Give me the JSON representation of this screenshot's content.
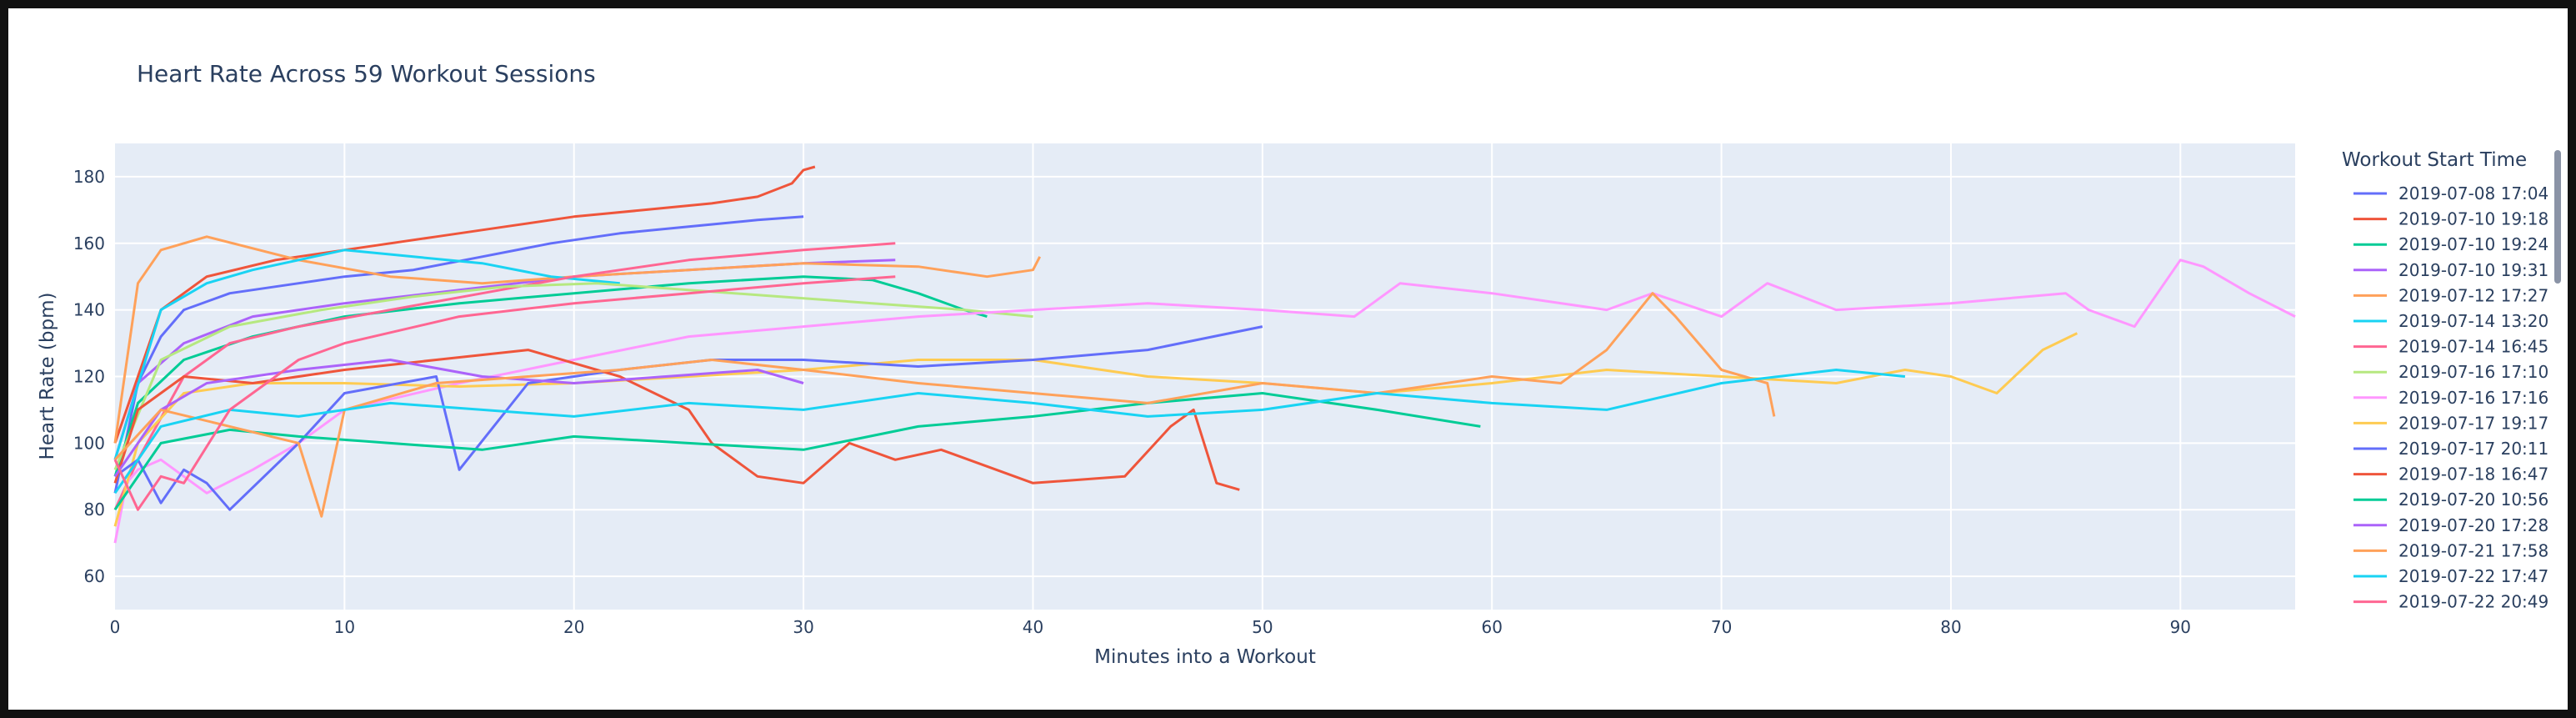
{
  "chart_data": {
    "type": "line",
    "title": "Heart Rate Across 59 Workout Sessions",
    "xlabel": "Minutes into a Workout",
    "ylabel": "Heart Rate (bpm)",
    "xlim": [
      0,
      95
    ],
    "ylim": [
      50,
      190
    ],
    "xticks": [
      0,
      10,
      20,
      30,
      40,
      50,
      60,
      70,
      80,
      90
    ],
    "yticks": [
      60,
      80,
      100,
      120,
      140,
      160,
      180
    ],
    "grid": true,
    "legend": {
      "title": "Workout Start Time",
      "placement": "right",
      "scrollable": true
    },
    "series": [
      {
        "name": "2019-07-08 17:04",
        "color": "#636efa",
        "x": [
          0,
          1,
          2,
          3,
          5,
          8,
          10,
          13,
          16,
          19,
          22,
          25,
          28,
          30
        ],
        "y": [
          85,
          118,
          132,
          140,
          145,
          148,
          150,
          152,
          156,
          160,
          163,
          165,
          167,
          168
        ]
      },
      {
        "name": "2019-07-10 19:18",
        "color": "#EF553B",
        "x": [
          0,
          2,
          4,
          7,
          10,
          14,
          17,
          20,
          23,
          26,
          28,
          29.5,
          30,
          30.5
        ],
        "y": [
          100,
          140,
          150,
          155,
          158,
          162,
          165,
          168,
          170,
          172,
          174,
          178,
          182,
          183
        ]
      },
      {
        "name": "2019-07-10 19:24",
        "color": "#00cc96",
        "x": [
          0,
          1,
          3,
          6,
          10,
          15,
          20,
          25,
          30,
          33,
          35,
          37,
          38
        ],
        "y": [
          90,
          112,
          125,
          132,
          138,
          142,
          145,
          148,
          150,
          149,
          145,
          140,
          138
        ]
      },
      {
        "name": "2019-07-10 19:31",
        "color": "#ab63fa",
        "x": [
          0,
          1,
          3,
          6,
          10,
          15,
          20,
          25,
          30,
          34
        ],
        "y": [
          95,
          118,
          130,
          138,
          142,
          146,
          150,
          152,
          154,
          155
        ]
      },
      {
        "name": "2019-07-12 17:27",
        "color": "#FFA15A",
        "x": [
          0,
          1,
          2,
          4,
          8,
          12,
          16,
          20,
          25,
          30,
          35,
          38,
          40,
          40.3
        ],
        "y": [
          100,
          148,
          158,
          162,
          155,
          150,
          148,
          150,
          152,
          154,
          153,
          150,
          152,
          156
        ]
      },
      {
        "name": "2019-07-14 13:20",
        "color": "#19d3f3",
        "x": [
          0,
          2,
          4,
          6,
          8,
          10,
          13,
          16,
          19,
          22
        ],
        "y": [
          95,
          140,
          148,
          152,
          155,
          158,
          156,
          154,
          150,
          148
        ]
      },
      {
        "name": "2019-07-14 16:45",
        "color": "#FF6692",
        "x": [
          0,
          1,
          3,
          5,
          8,
          12,
          16,
          20,
          25,
          30,
          34
        ],
        "y": [
          80,
          95,
          120,
          130,
          135,
          140,
          145,
          150,
          155,
          158,
          160
        ]
      },
      {
        "name": "2019-07-16 17:10",
        "color": "#B6E880",
        "x": [
          0,
          2,
          5,
          9,
          13,
          17,
          21,
          25,
          29,
          33,
          37,
          40
        ],
        "y": [
          92,
          125,
          135,
          140,
          144,
          147,
          148,
          146,
          144,
          142,
          140,
          138
        ]
      },
      {
        "name": "2019-07-16 17:16",
        "color": "#FF97FF",
        "x": [
          0,
          0.5,
          1,
          2,
          4,
          6,
          8,
          10,
          15,
          20,
          25,
          30,
          35,
          40,
          45,
          50,
          54,
          56,
          60,
          65,
          67,
          70,
          72,
          75,
          80,
          85,
          86,
          88,
          90,
          91,
          93,
          95
        ],
        "y": [
          70,
          88,
          92,
          95,
          85,
          92,
          100,
          110,
          118,
          125,
          132,
          135,
          138,
          140,
          142,
          140,
          138,
          148,
          145,
          140,
          145,
          138,
          148,
          140,
          142,
          145,
          140,
          135,
          155,
          153,
          145,
          138
        ]
      },
      {
        "name": "2019-07-17 19:17",
        "color": "#FECB52",
        "x": [
          0,
          1,
          3,
          6,
          10,
          15,
          20,
          25,
          30,
          35,
          40,
          45,
          50,
          55,
          60,
          65,
          70,
          75,
          78,
          80,
          82,
          84,
          85.5
        ],
        "y": [
          75,
          100,
          115,
          118,
          118,
          117,
          118,
          120,
          122,
          125,
          125,
          120,
          118,
          115,
          118,
          122,
          120,
          118,
          122,
          120,
          115,
          128,
          133
        ]
      },
      {
        "name": "2019-07-17 20:11",
        "color": "#636efa",
        "x": [
          0,
          1,
          2,
          3,
          4,
          5,
          8,
          10,
          14,
          15,
          18,
          22,
          26,
          30,
          35,
          40,
          45,
          50
        ],
        "y": [
          90,
          95,
          82,
          92,
          88,
          80,
          100,
          115,
          120,
          92,
          118,
          122,
          125,
          125,
          123,
          125,
          128,
          135
        ]
      },
      {
        "name": "2019-07-18 16:47",
        "color": "#EF553B",
        "x": [
          0,
          1,
          3,
          6,
          10,
          14,
          18,
          22,
          25,
          26,
          28,
          30,
          32,
          34,
          36,
          40,
          44,
          46,
          47,
          48,
          49
        ],
        "y": [
          88,
          110,
          120,
          118,
          122,
          125,
          128,
          120,
          110,
          100,
          90,
          88,
          100,
          95,
          98,
          88,
          90,
          105,
          110,
          88,
          86
        ]
      },
      {
        "name": "2019-07-20 10:56",
        "color": "#00cc96",
        "x": [
          0,
          2,
          5,
          8,
          12,
          16,
          20,
          25,
          30,
          35,
          40,
          45,
          50,
          55,
          59.5
        ],
        "y": [
          80,
          100,
          104,
          102,
          100,
          98,
          102,
          100,
          98,
          105,
          108,
          112,
          115,
          110,
          105
        ]
      },
      {
        "name": "2019-07-20 17:28",
        "color": "#ab63fa",
        "x": [
          0,
          2,
          4,
          8,
          12,
          16,
          20,
          24,
          28,
          30
        ],
        "y": [
          90,
          110,
          118,
          122,
          125,
          120,
          118,
          120,
          122,
          118
        ]
      },
      {
        "name": "2019-07-21 17:58",
        "color": "#FFA15A",
        "x": [
          0,
          2,
          5,
          8,
          9,
          10,
          14,
          18,
          22,
          26,
          30,
          35,
          40,
          45,
          50,
          55,
          60,
          63,
          65,
          67,
          68,
          70,
          72,
          72.3
        ],
        "y": [
          95,
          110,
          105,
          100,
          78,
          110,
          118,
          120,
          122,
          125,
          122,
          118,
          115,
          112,
          118,
          115,
          120,
          118,
          128,
          145,
          138,
          122,
          118,
          108
        ]
      },
      {
        "name": "2019-07-22 17:47",
        "color": "#19d3f3",
        "x": [
          0,
          2,
          5,
          8,
          12,
          16,
          20,
          25,
          30,
          35,
          40,
          45,
          50,
          55,
          60,
          65,
          70,
          75,
          78
        ],
        "y": [
          85,
          105,
          110,
          108,
          112,
          110,
          108,
          112,
          110,
          115,
          112,
          108,
          110,
          115,
          112,
          110,
          118,
          122,
          120
        ]
      },
      {
        "name": "2019-07-22 20:49",
        "color": "#FF6692",
        "x": [
          0,
          1,
          2,
          3,
          5,
          8,
          10,
          15,
          20,
          25,
          30,
          34
        ],
        "y": [
          95,
          80,
          90,
          88,
          110,
          125,
          130,
          138,
          142,
          145,
          148,
          150
        ]
      }
    ]
  }
}
